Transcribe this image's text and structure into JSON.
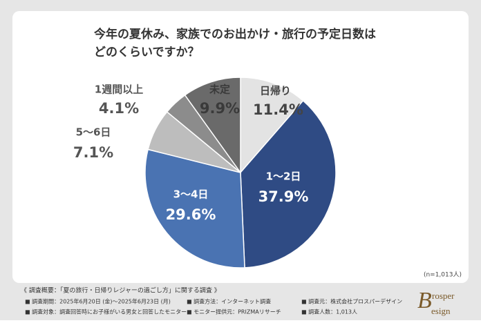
{
  "chart_data": {
    "type": "pie",
    "title": [
      "今年の夏休み、家族でのお出かけ・旅行の予定日数は",
      "どのくらいですか？"
    ],
    "categories": [
      "日帰り",
      "1〜2日",
      "3〜4日",
      "5〜6日",
      "1週間以上",
      "未定"
    ],
    "values": [
      11.4,
      37.9,
      29.6,
      7.1,
      4.1,
      9.9
    ],
    "value_labels": [
      "11.4%",
      "37.9%",
      "29.6%",
      "7.1%",
      "4.1%",
      "9.9%"
    ],
    "colors": [
      "#e3e3e3",
      "#2f4b84",
      "#4a73b2",
      "#bdbdbd",
      "#8c8c8c",
      "#6a6a6a"
    ],
    "note": "(n=1,013人)"
  },
  "footer": {
    "heading": "《 調査概要：「夏の旅行・日帰りレジャーの過ごし方」に関する調査 》",
    "items": [
      [
        "■ 調査期間：2025年6月20日 (金)〜2025年6月23日 (月)",
        "■ 調査方法：インターネット調査",
        "■ 調査元：株式会社プロスパーデザイン"
      ],
      [
        "■ 調査対象：調査回答時にお子様がいる男女と回答したモニター",
        "■ モニター提供元：PRIZMAリサーチ",
        "■ 調査人数：1,013人"
      ]
    ]
  },
  "logo": [
    "rosper",
    "esign"
  ]
}
